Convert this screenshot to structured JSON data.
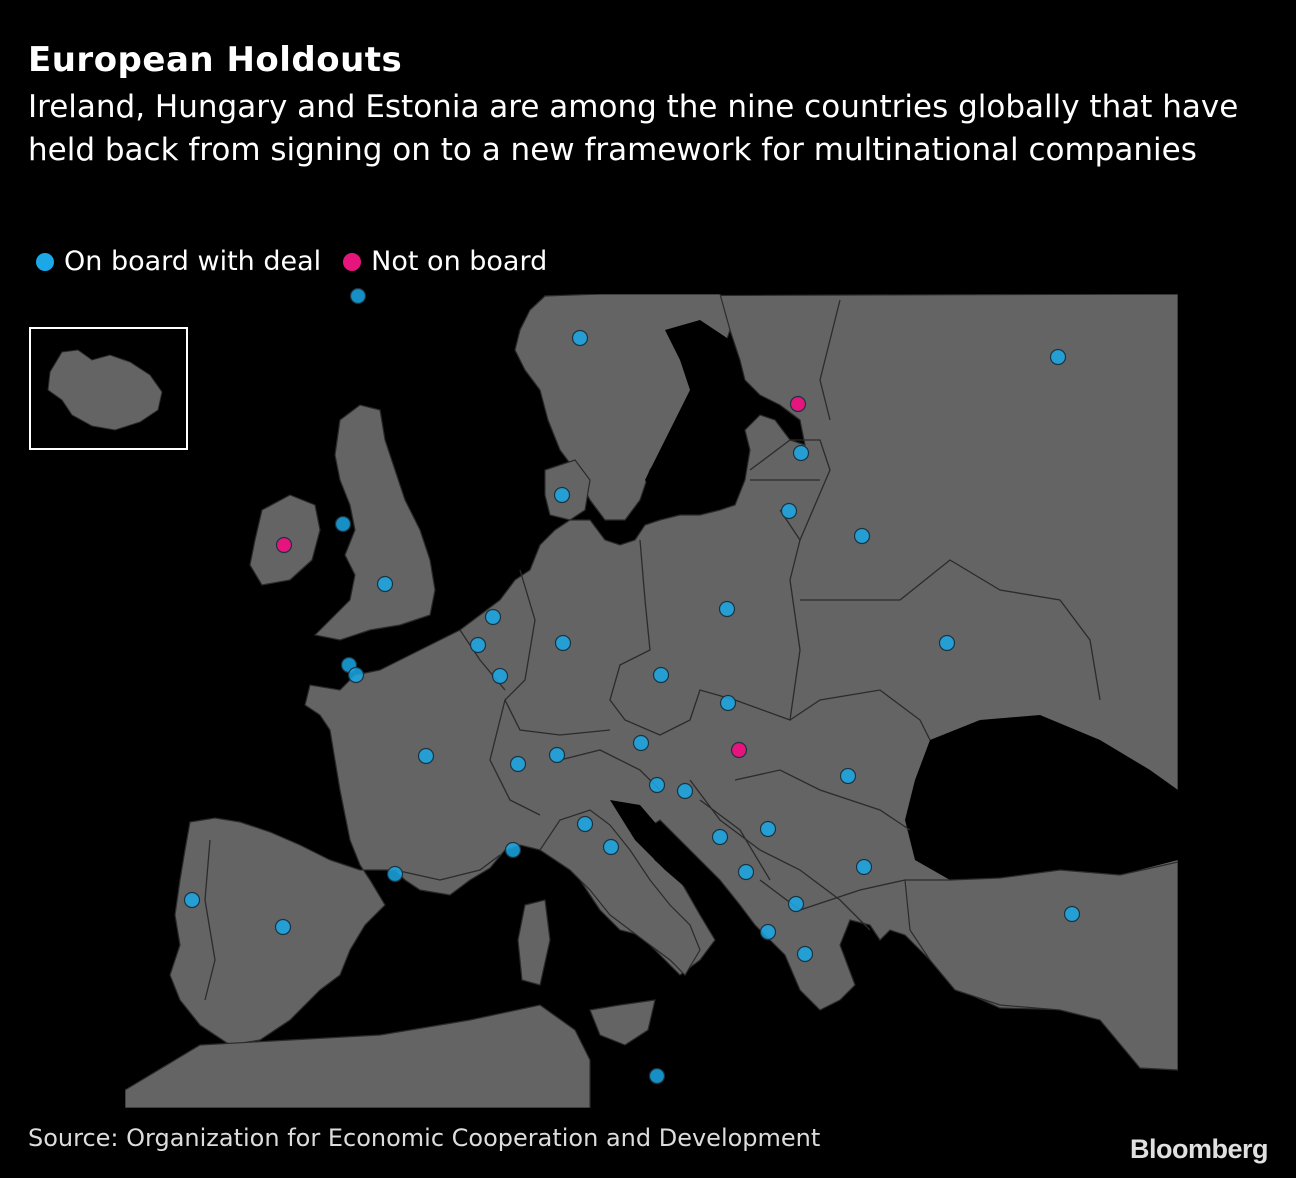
{
  "title": "European Holdouts",
  "subtitle": "Ireland, Hungary and Estonia are among the nine countries globally that have held back from signing on to a new framework for multinational companies",
  "legend": [
    {
      "label": "On board with deal",
      "status": "on_board",
      "color": "#1aa8e8"
    },
    {
      "label": "Not on board",
      "status": "not_on_board",
      "color": "#e5157d"
    }
  ],
  "colors": {
    "background": "#000000",
    "land": "#646464",
    "border": "#2b2b2b",
    "marker_outline": "#1b3340"
  },
  "inset": {
    "region": "Iceland",
    "status": "on_board"
  },
  "markers": [
    {
      "id": "iceland",
      "status": "on_board"
    },
    {
      "id": "norway",
      "status": "on_board"
    },
    {
      "id": "russia",
      "status": "on_board"
    },
    {
      "id": "estonia",
      "status": "not_on_board"
    },
    {
      "id": "latvia",
      "status": "on_board"
    },
    {
      "id": "lithuania",
      "status": "on_board"
    },
    {
      "id": "belarus",
      "status": "on_board"
    },
    {
      "id": "denmark",
      "status": "on_board"
    },
    {
      "id": "ireland",
      "status": "not_on_board"
    },
    {
      "id": "isle-of-man",
      "status": "on_board"
    },
    {
      "id": "united-kingdom",
      "status": "on_board"
    },
    {
      "id": "netherlands",
      "status": "on_board"
    },
    {
      "id": "belgium",
      "status": "on_board"
    },
    {
      "id": "germany",
      "status": "on_board"
    },
    {
      "id": "poland",
      "status": "on_board"
    },
    {
      "id": "ukraine",
      "status": "on_board"
    },
    {
      "id": "jersey",
      "status": "on_board"
    },
    {
      "id": "guernsey",
      "status": "on_board"
    },
    {
      "id": "luxembourg",
      "status": "on_board"
    },
    {
      "id": "czech-republic",
      "status": "on_board"
    },
    {
      "id": "slovakia",
      "status": "on_board"
    },
    {
      "id": "austria",
      "status": "on_board"
    },
    {
      "id": "hungary",
      "status": "not_on_board"
    },
    {
      "id": "france",
      "status": "on_board"
    },
    {
      "id": "switzerland",
      "status": "on_board"
    },
    {
      "id": "liechtenstein",
      "status": "on_board"
    },
    {
      "id": "slovenia",
      "status": "on_board"
    },
    {
      "id": "croatia",
      "status": "on_board"
    },
    {
      "id": "romania",
      "status": "on_board"
    },
    {
      "id": "serbia",
      "status": "on_board"
    },
    {
      "id": "bosnia",
      "status": "on_board"
    },
    {
      "id": "italy",
      "status": "on_board"
    },
    {
      "id": "san-marino",
      "status": "on_board"
    },
    {
      "id": "monaco",
      "status": "on_board"
    },
    {
      "id": "andorra",
      "status": "on_board"
    },
    {
      "id": "montenegro",
      "status": "on_board"
    },
    {
      "id": "bulgaria",
      "status": "on_board"
    },
    {
      "id": "portugal",
      "status": "on_board"
    },
    {
      "id": "spain",
      "status": "on_board"
    },
    {
      "id": "north-macedonia",
      "status": "on_board"
    },
    {
      "id": "albania",
      "status": "on_board"
    },
    {
      "id": "greece",
      "status": "on_board"
    },
    {
      "id": "turkey",
      "status": "on_board"
    },
    {
      "id": "malta",
      "status": "on_board"
    }
  ],
  "source": "Source: Organization for Economic Cooperation and Development",
  "brand": "Bloomberg"
}
